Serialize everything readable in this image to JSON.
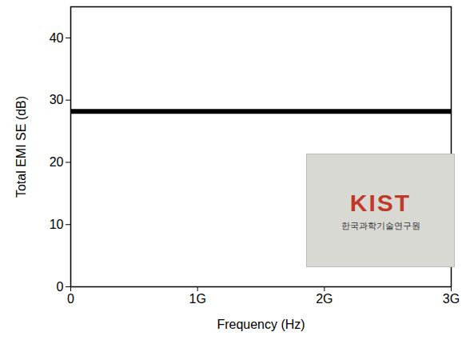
{
  "chart_data": {
    "type": "line",
    "x": [
      0,
      3000000000
    ],
    "values": [
      28.2,
      28.2
    ],
    "color": "#000000",
    "xlabel": "Frequency (Hz)",
    "ylabel": "Total EMI SE (dB)",
    "xlim": [
      0,
      3000000000
    ],
    "xticks": [
      0,
      {
        "value": 1000000000,
        "label": "1G"
      },
      {
        "value": 2000000000,
        "label": "2G"
      },
      {
        "value": 3000000000,
        "label": "3G"
      }
    ],
    "ylim": [
      0,
      45
    ],
    "yticks": [
      0,
      10,
      20,
      30,
      40
    ],
    "grid": false,
    "annotations": [
      "KIST",
      "한국과학기술연구원"
    ]
  }
}
